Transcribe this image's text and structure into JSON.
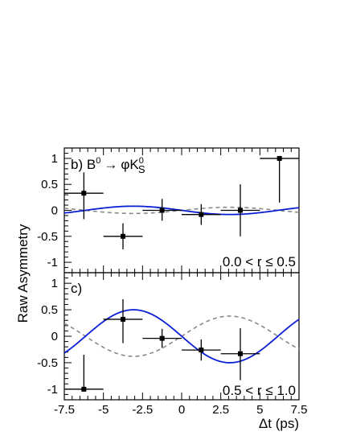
{
  "chart_data": {
    "type": "scatter",
    "xlabel": "Δt (ps)",
    "ylabel": "Raw Asymmetry",
    "xlim": [
      -7.5,
      7.5
    ],
    "x_ticks": [
      "-7.5",
      "-5",
      "-2.5",
      "0",
      "2.5",
      "5",
      "7.5"
    ],
    "panels": [
      {
        "label": "b) B⁰ → φK⁰S",
        "label_parts": {
          "prefix": "b) B",
          "sup1": "0",
          "arrow": "→",
          "phi": "φK",
          "sup2": "0",
          "sub": "S"
        },
        "range_text": "0.0 < r ≤ 0.5",
        "ylim": [
          -1.2,
          1.2
        ],
        "y_ticks": [
          "1",
          "0.5",
          "0",
          "-0.5",
          "-1"
        ],
        "y_tick_values": [
          1,
          0.5,
          0,
          -0.5,
          -1
        ],
        "points": [
          {
            "x": -6.25,
            "y": 0.33,
            "xerr": 1.25,
            "yerr_low": 0.5,
            "yerr_high": 0.4
          },
          {
            "x": -3.75,
            "y": -0.5,
            "xerr": 1.25,
            "yerr_low": 0.25,
            "yerr_high": 0.25
          },
          {
            "x": -1.25,
            "y": 0.0,
            "xerr": 1.25,
            "yerr_low": 0.2,
            "yerr_high": 0.22
          },
          {
            "x": 1.25,
            "y": -0.08,
            "xerr": 1.25,
            "yerr_low": 0.2,
            "yerr_high": 0.2
          },
          {
            "x": 3.75,
            "y": 0.0,
            "xerr": 1.25,
            "yerr_low": 0.5,
            "yerr_high": 0.5
          },
          {
            "x": 6.25,
            "y": 1.0,
            "xerr": 1.25,
            "yerr_low": 0.85,
            "yerr_high": 0.0
          }
        ],
        "fit_amplitude": 0.08,
        "alt_amplitude": -0.06
      },
      {
        "label": "c)",
        "range_text": "0.5 < r ≤ 1.0",
        "ylim": [
          -1.2,
          1.2
        ],
        "y_ticks": [
          "1",
          "0.5",
          "0",
          "-0.5",
          "-1"
        ],
        "y_tick_values": [
          1,
          0.5,
          0,
          -0.5,
          -1
        ],
        "points": [
          {
            "x": -6.25,
            "y": -1.0,
            "xerr": 1.25,
            "yerr_low": 0.0,
            "yerr_high": 0.65
          },
          {
            "x": -3.75,
            "y": 0.32,
            "xerr": 1.25,
            "yerr_low": 0.45,
            "yerr_high": 0.38
          },
          {
            "x": -1.25,
            "y": -0.04,
            "xerr": 1.25,
            "yerr_low": 0.18,
            "yerr_high": 0.18
          },
          {
            "x": 1.25,
            "y": -0.26,
            "xerr": 1.25,
            "yerr_low": 0.2,
            "yerr_high": 0.2
          },
          {
            "x": 3.75,
            "y": -0.33,
            "xerr": 1.25,
            "yerr_low": 0.5,
            "yerr_high": 0.48
          },
          {
            "x": 6.25,
            "y": null,
            "xerr": 1.25,
            "yerr_low": 0,
            "yerr_high": 0
          }
        ],
        "fit_amplitude": 0.5,
        "alt_amplitude": -0.38
      }
    ],
    "fit_color": "#0a1fd4",
    "alt_color": "#8a8a8a",
    "oscillation_period_ps": 12.3
  }
}
